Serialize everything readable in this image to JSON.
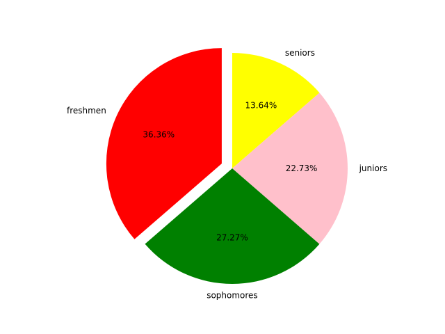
{
  "chart_data": {
    "type": "pie",
    "slices": [
      {
        "label": "seniors",
        "value": 13.64,
        "pct_label": "13.64%",
        "color": "#ffff00",
        "exploded": false
      },
      {
        "label": "juniors",
        "value": 22.73,
        "pct_label": "22.73%",
        "color": "#ffc0cb",
        "exploded": false
      },
      {
        "label": "sophomores",
        "value": 27.27,
        "pct_label": "27.27%",
        "color": "#008000",
        "exploded": false
      },
      {
        "label": "freshmen",
        "value": 36.36,
        "pct_label": "36.36%",
        "color": "#ff0000",
        "exploded": true
      }
    ],
    "start_angle_deg": 90,
    "direction": "clockwise",
    "legend": false
  }
}
